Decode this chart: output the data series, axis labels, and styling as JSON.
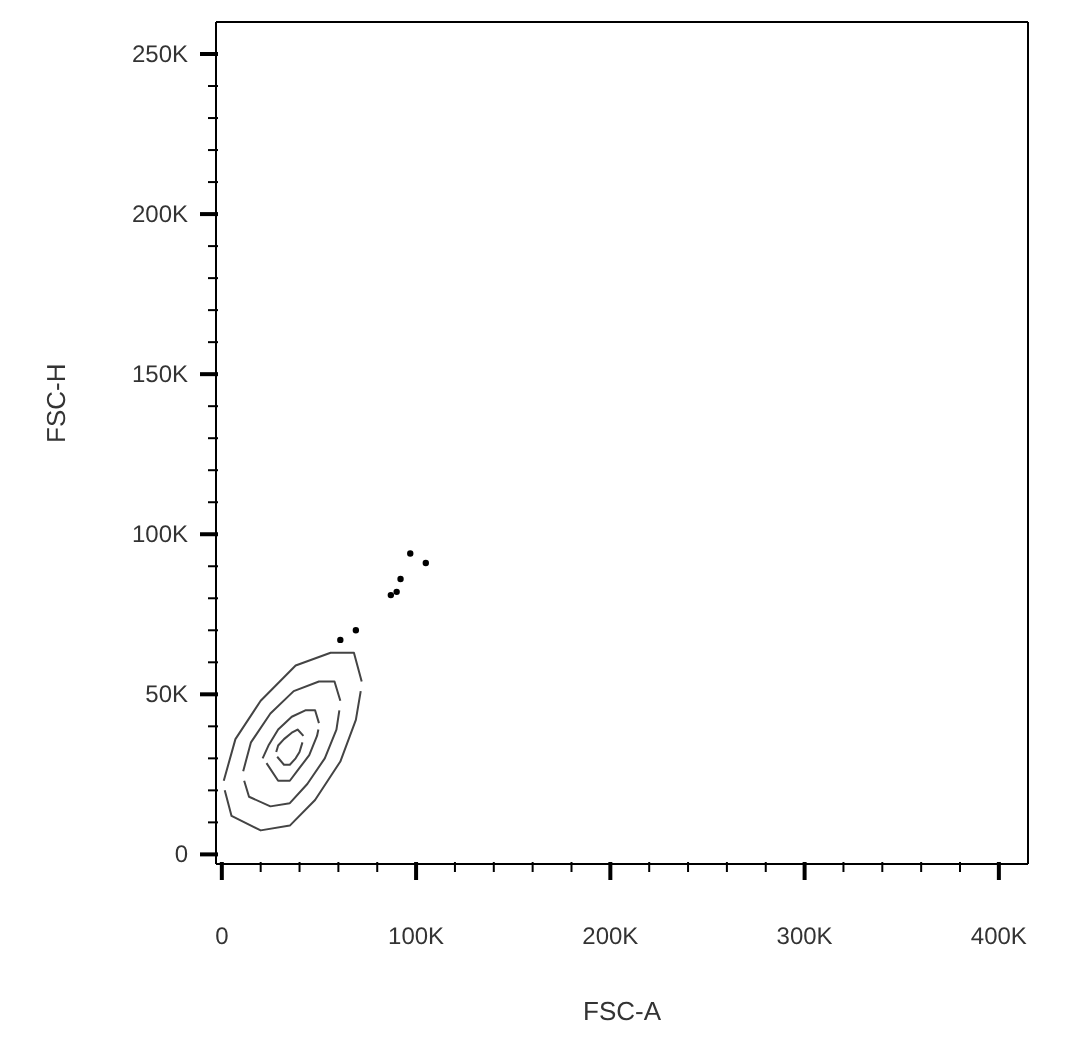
{
  "chart_data": {
    "type": "line",
    "xlabel": "FSC-A",
    "ylabel": "FSC-H",
    "xlim": [
      -3000,
      415000
    ],
    "ylim": [
      -3000,
      260000
    ],
    "xticks": [
      {
        "value": 0,
        "label": "0"
      },
      {
        "value": 20000,
        "label": null
      },
      {
        "value": 40000,
        "label": null
      },
      {
        "value": 60000,
        "label": null
      },
      {
        "value": 80000,
        "label": null
      },
      {
        "value": 100000,
        "label": "100K"
      },
      {
        "value": 120000,
        "label": null
      },
      {
        "value": 140000,
        "label": null
      },
      {
        "value": 160000,
        "label": null
      },
      {
        "value": 180000,
        "label": null
      },
      {
        "value": 200000,
        "label": "200K"
      },
      {
        "value": 220000,
        "label": null
      },
      {
        "value": 240000,
        "label": null
      },
      {
        "value": 260000,
        "label": null
      },
      {
        "value": 280000,
        "label": null
      },
      {
        "value": 300000,
        "label": "300K"
      },
      {
        "value": 320000,
        "label": null
      },
      {
        "value": 340000,
        "label": null
      },
      {
        "value": 360000,
        "label": null
      },
      {
        "value": 380000,
        "label": null
      },
      {
        "value": 400000,
        "label": "400K"
      }
    ],
    "yticks": [
      {
        "value": 0,
        "label": "0"
      },
      {
        "value": 10000,
        "label": null
      },
      {
        "value": 20000,
        "label": null
      },
      {
        "value": 30000,
        "label": null
      },
      {
        "value": 40000,
        "label": null
      },
      {
        "value": 50000,
        "label": "50K"
      },
      {
        "value": 60000,
        "label": null
      },
      {
        "value": 70000,
        "label": null
      },
      {
        "value": 80000,
        "label": null
      },
      {
        "value": 90000,
        "label": null
      },
      {
        "value": 100000,
        "label": "100K"
      },
      {
        "value": 110000,
        "label": null
      },
      {
        "value": 120000,
        "label": null
      },
      {
        "value": 130000,
        "label": null
      },
      {
        "value": 140000,
        "label": null
      },
      {
        "value": 150000,
        "label": "150K"
      },
      {
        "value": 160000,
        "label": null
      },
      {
        "value": 170000,
        "label": null
      },
      {
        "value": 180000,
        "label": null
      },
      {
        "value": 190000,
        "label": null
      },
      {
        "value": 200000,
        "label": "200K"
      },
      {
        "value": 210000,
        "label": null
      },
      {
        "value": 220000,
        "label": null
      },
      {
        "value": 230000,
        "label": null
      },
      {
        "value": 240000,
        "label": null
      },
      {
        "value": 250000,
        "label": "250K"
      }
    ],
    "series": [
      {
        "color": "#444444",
        "x": [
          1000,
          7000,
          20000,
          38000,
          56000,
          68000,
          72000
        ],
        "values": [
          23000,
          36000,
          48000,
          59000,
          63000,
          63000,
          54000
        ]
      },
      {
        "color": "#444444",
        "x": [
          1500,
          5000,
          20000,
          35000,
          48000,
          61000,
          69000,
          71500
        ],
        "values": [
          20000,
          12000,
          7500,
          9000,
          17000,
          29000,
          42000,
          51000
        ]
      },
      {
        "color": "#444444",
        "x": [
          11000,
          15000,
          25000,
          37000,
          50000,
          58000,
          61000
        ],
        "values": [
          26000,
          35000,
          44000,
          51000,
          54000,
          54000,
          48000
        ]
      },
      {
        "color": "#444444",
        "x": [
          11500,
          14000,
          25000,
          35000,
          44000,
          53000,
          59000,
          60500
        ],
        "values": [
          23000,
          18000,
          15000,
          16000,
          22000,
          30000,
          39000,
          45000
        ]
      },
      {
        "color": "#444444",
        "x": [
          21000,
          24000,
          29000,
          36000,
          43000,
          48000,
          50000
        ],
        "values": [
          30000,
          34000,
          39000,
          43000,
          45000,
          45000,
          41000
        ]
      },
      {
        "color": "#444444",
        "x": [
          23000,
          29000,
          35000,
          40000,
          45000,
          49000,
          49700
        ],
        "values": [
          28500,
          23000,
          23000,
          27000,
          31000,
          37000,
          39000
        ]
      },
      {
        "color": "#444444",
        "x": [
          28000,
          29000,
          32000,
          36000,
          39000,
          42000
        ],
        "values": [
          32000,
          34000,
          36000,
          38000,
          39000,
          37000
        ]
      },
      {
        "color": "#444444",
        "x": [
          28500,
          32000,
          35000,
          38000,
          40000,
          41500
        ],
        "values": [
          30500,
          28000,
          28000,
          30000,
          32000,
          35000
        ]
      },
      {
        "type": "scatter",
        "color": "#000000",
        "x": [
          61000,
          69000,
          87000,
          90000,
          92000,
          97000,
          105000
        ],
        "values": [
          67000,
          70000,
          81000,
          82000,
          86000,
          94000,
          91000
        ]
      }
    ]
  }
}
